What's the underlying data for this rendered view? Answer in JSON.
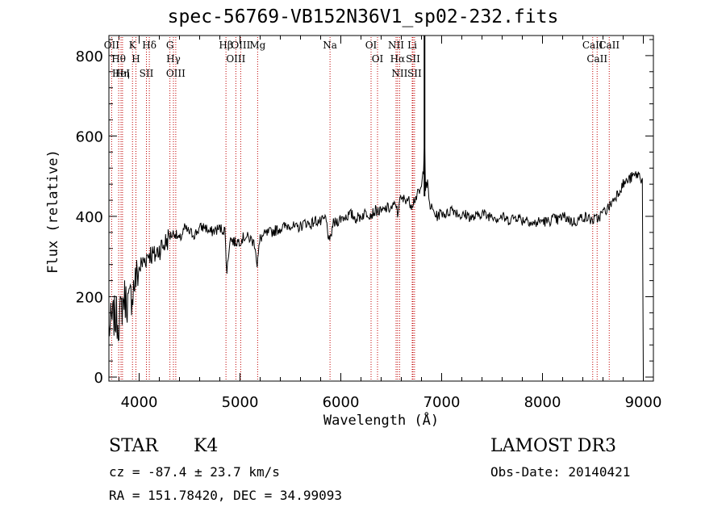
{
  "chart_data": {
    "type": "line",
    "title": "spec-56769-VB152N36V1_sp02-232.fits",
    "xlabel": "Wavelength (Å)",
    "ylabel": "Flux (relative)",
    "xlim": [
      3700,
      9100
    ],
    "ylim": [
      -10,
      850
    ],
    "x_ticks": [
      4000,
      5000,
      6000,
      7000,
      8000,
      9000
    ],
    "y_ticks": [
      0,
      200,
      400,
      600,
      800
    ],
    "series": [
      {
        "name": "flux",
        "x": [
          3700,
          3750,
          3800,
          3850,
          3900,
          3950,
          4000,
          4050,
          4100,
          4150,
          4200,
          4250,
          4300,
          4350,
          4400,
          4450,
          4500,
          4550,
          4600,
          4650,
          4700,
          4750,
          4800,
          4850,
          4870,
          4900,
          4950,
          5000,
          5050,
          5100,
          5150,
          5170,
          5200,
          5250,
          5300,
          5350,
          5400,
          5450,
          5500,
          5550,
          5600,
          5650,
          5700,
          5750,
          5800,
          5850,
          5890,
          5920,
          5950,
          6000,
          6050,
          6100,
          6150,
          6200,
          6250,
          6300,
          6350,
          6400,
          6450,
          6500,
          6550,
          6563,
          6580,
          6600,
          6650,
          6700,
          6750,
          6780,
          6800,
          6820,
          6830,
          6840,
          6860,
          6880,
          6900,
          6950,
          7000,
          7050,
          7100,
          7150,
          7200,
          7250,
          7300,
          7350,
          7400,
          7450,
          7500,
          7550,
          7600,
          7650,
          7700,
          7750,
          7800,
          7850,
          7900,
          7950,
          8000,
          8050,
          8100,
          8150,
          8200,
          8250,
          8300,
          8350,
          8400,
          8450,
          8500,
          8550,
          8600,
          8650,
          8700,
          8750,
          8800,
          8850,
          8900,
          8950,
          8990,
          9000
        ],
        "y": [
          120,
          150,
          140,
          200,
          180,
          230,
          270,
          290,
          310,
          300,
          320,
          330,
          350,
          360,
          340,
          370,
          360,
          355,
          370,
          375,
          360,
          365,
          370,
          365,
          260,
          345,
          335,
          340,
          350,
          345,
          330,
          280,
          345,
          355,
          360,
          365,
          370,
          375,
          380,
          370,
          375,
          385,
          380,
          390,
          385,
          395,
          330,
          380,
          385,
          395,
          400,
          405,
          395,
          400,
          410,
          405,
          415,
          410,
          420,
          420,
          430,
          400,
          440,
          440,
          445,
          430,
          450,
          460,
          470,
          520,
          600,
          470,
          480,
          430,
          420,
          400,
          410,
          405,
          420,
          410,
          400,
          405,
          395,
          400,
          410,
          400,
          405,
          395,
          400,
          390,
          395,
          400,
          390,
          395,
          380,
          385,
          390,
          385,
          395,
          390,
          400,
          395,
          385,
          390,
          400,
          395,
          390,
          395,
          410,
          420,
          440,
          460,
          480,
          490,
          500,
          505,
          490,
          0
        ]
      }
    ],
    "lines": [
      {
        "name": "Hθ",
        "x": 3797
      },
      {
        "name": "OII",
        "x": 3727
      },
      {
        "name": "HeI",
        "x": 3820
      },
      {
        "name": "Hη",
        "x": 3835
      },
      {
        "name": "K",
        "x": 3934
      },
      {
        "name": "H",
        "x": 3968
      },
      {
        "name": "Hδ",
        "x": 4101
      },
      {
        "name": "SII",
        "x": 4072
      },
      {
        "name": "OIII",
        "x": 4363
      },
      {
        "name": "Hγ",
        "x": 4340
      },
      {
        "name": "G",
        "x": 4305
      },
      {
        "name": "Hβ",
        "x": 4861
      },
      {
        "name": "OIII",
        "x": 4959
      },
      {
        "name": "OIII",
        "x": 5007
      },
      {
        "name": "Mg",
        "x": 5175
      },
      {
        "name": "Na",
        "x": 5893
      },
      {
        "name": "OI",
        "x": 6300
      },
      {
        "name": "OI",
        "x": 6364
      },
      {
        "name": "Hα",
        "x": 6563
      },
      {
        "name": "NII",
        "x": 6548
      },
      {
        "name": "NII",
        "x": 6583
      },
      {
        "name": "SII",
        "x": 6716
      },
      {
        "name": "Li",
        "x": 6708
      },
      {
        "name": "SII",
        "x": 6731
      },
      {
        "name": "CaII",
        "x": 8542
      },
      {
        "name": "CaII",
        "x": 8498
      },
      {
        "name": "CaII",
        "x": 8662
      }
    ]
  },
  "info": {
    "object_class": "STAR",
    "subclass": "K4",
    "cz": "cz = -87.4 ± 23.7 km/s",
    "coords": "RA = 151.78420, DEC =  34.99093",
    "survey": "LAMOST DR3",
    "obs_date": "Obs-Date: 20140421"
  }
}
